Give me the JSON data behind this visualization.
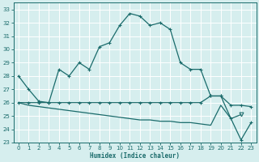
{
  "xlabel": "Humidex (Indice chaleur)",
  "background_color": "#d6eeee",
  "grid_color": "#b8d8d8",
  "line_color": "#1a6b6b",
  "xlim": [
    -0.5,
    23.5
  ],
  "ylim": [
    23,
    33.5
  ],
  "yticks": [
    23,
    24,
    25,
    26,
    27,
    28,
    29,
    30,
    31,
    32,
    33
  ],
  "xticks": [
    0,
    1,
    2,
    3,
    4,
    5,
    6,
    7,
    8,
    9,
    10,
    11,
    12,
    13,
    14,
    15,
    16,
    17,
    18,
    19,
    20,
    21,
    22,
    23
  ],
  "series1_x": [
    0,
    1,
    2,
    3,
    4,
    5,
    6,
    7,
    8,
    9,
    10,
    11,
    12,
    13,
    14,
    15,
    16,
    17,
    18,
    19,
    20,
    21,
    22,
    23
  ],
  "series1_y": [
    28,
    27,
    26.1,
    26.0,
    28.5,
    28.0,
    29.0,
    28.5,
    30.2,
    30.5,
    31.8,
    32.7,
    32.5,
    31.8,
    32.0,
    31.5,
    29.0,
    28.5,
    28.5,
    26.5,
    26.5,
    24.8,
    23.2,
    24.5
  ],
  "series2_x": [
    0,
    1,
    2,
    3,
    4,
    5,
    6,
    7,
    8,
    9,
    10,
    11,
    12,
    13,
    14,
    15,
    16,
    17,
    18,
    19,
    20,
    21,
    22,
    23
  ],
  "series2_y": [
    26.0,
    26.0,
    26.0,
    26.0,
    26.0,
    26.0,
    26.0,
    26.0,
    26.0,
    26.0,
    26.0,
    26.0,
    26.0,
    26.0,
    26.0,
    26.0,
    26.0,
    26.0,
    26.0,
    26.5,
    26.5,
    25.8,
    25.8,
    25.7
  ],
  "series3_x": [
    0,
    1,
    2,
    3,
    4,
    5,
    6,
    7,
    8,
    9,
    10,
    11,
    12,
    13,
    14,
    15,
    16,
    17,
    18,
    19,
    20,
    21,
    22,
    23
  ],
  "series3_y": [
    26.0,
    25.8,
    25.7,
    25.6,
    25.5,
    25.4,
    25.3,
    25.2,
    25.1,
    25.0,
    24.9,
    24.8,
    24.7,
    24.7,
    24.6,
    24.6,
    24.5,
    24.5,
    24.4,
    24.3,
    25.8,
    24.8,
    25.1,
    24.3
  ],
  "markers1": [
    0,
    1,
    2,
    3,
    4,
    5,
    6,
    7,
    8,
    9,
    10,
    11,
    12,
    13,
    14,
    15,
    16,
    17,
    18,
    19,
    20,
    21,
    22,
    23
  ],
  "figsize": [
    3.2,
    2.0
  ],
  "dpi": 100
}
